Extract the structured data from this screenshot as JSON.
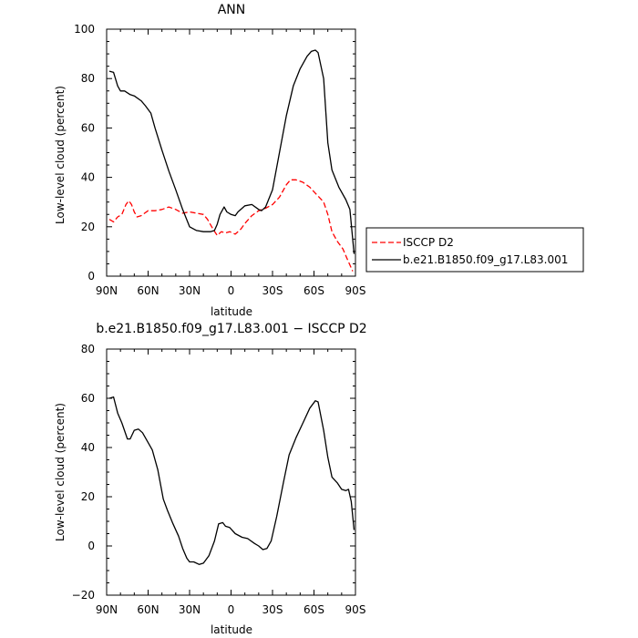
{
  "chart_data": [
    {
      "type": "line",
      "title": "ANN",
      "xlabel": "latitude",
      "ylabel": "Low-level cloud (percent)",
      "xlim": [
        90,
        -90
      ],
      "ylim": [
        0,
        100
      ],
      "xticks": [
        90,
        60,
        30,
        0,
        -30,
        -60,
        -90
      ],
      "xtick_labels": [
        "90N",
        "60N",
        "30N",
        "0",
        "30S",
        "60S",
        "90S"
      ],
      "yticks": [
        0,
        20,
        40,
        60,
        80,
        100
      ],
      "ytick_labels": [
        "0",
        "20",
        "40",
        "60",
        "80",
        "100"
      ],
      "grid": false,
      "legend": "outside-right",
      "series": [
        {
          "name": "ISCCP D2",
          "color": "#ff0000",
          "dash": "dashed",
          "points": [
            [
              88,
              23
            ],
            [
              85,
              22
            ],
            [
              82,
              24
            ],
            [
              79,
              25
            ],
            [
              76,
              29
            ],
            [
              74,
              30.5
            ],
            [
              72,
              29
            ],
            [
              70,
              26
            ],
            [
              68,
              24
            ],
            [
              65,
              24.5
            ],
            [
              60,
              26.5
            ],
            [
              55,
              26.5
            ],
            [
              50,
              27
            ],
            [
              45,
              28
            ],
            [
              40,
              27
            ],
            [
              35,
              25.5
            ],
            [
              30,
              26
            ],
            [
              25,
              25.5
            ],
            [
              20,
              25
            ],
            [
              17,
              23
            ],
            [
              13,
              19
            ],
            [
              10,
              16.5
            ],
            [
              7,
              18
            ],
            [
              4,
              17.5
            ],
            [
              1,
              18
            ],
            [
              -3,
              17
            ],
            [
              -7,
              19
            ],
            [
              -11,
              22
            ],
            [
              -15,
              24.5
            ],
            [
              -20,
              26.5
            ],
            [
              -25,
              27.5
            ],
            [
              -30,
              29
            ],
            [
              -35,
              32
            ],
            [
              -40,
              37
            ],
            [
              -43,
              39
            ],
            [
              -47,
              39
            ],
            [
              -52,
              38
            ],
            [
              -57,
              36
            ],
            [
              -62,
              33
            ],
            [
              -67,
              30
            ],
            [
              -70,
              25
            ],
            [
              -73,
              18
            ],
            [
              -77,
              14
            ],
            [
              -81,
              11
            ],
            [
              -84,
              7
            ],
            [
              -88,
              2
            ]
          ]
        },
        {
          "name": "b.e21.B1850.f09_g17.L83.001",
          "color": "#000000",
          "dash": "solid",
          "points": [
            [
              88,
              83
            ],
            [
              85,
              82.5
            ],
            [
              82,
              77
            ],
            [
              80,
              75
            ],
            [
              77,
              75
            ],
            [
              73,
              73.5
            ],
            [
              70,
              73
            ],
            [
              65,
              71
            ],
            [
              62,
              69
            ],
            [
              58,
              66
            ],
            [
              55,
              60
            ],
            [
              50,
              51
            ],
            [
              45,
              42.5
            ],
            [
              40,
              35
            ],
            [
              35,
              27
            ],
            [
              30,
              20
            ],
            [
              25,
              18.5
            ],
            [
              20,
              18
            ],
            [
              15,
              18
            ],
            [
              12,
              18.5
            ],
            [
              10,
              21
            ],
            [
              8,
              25
            ],
            [
              5,
              28
            ],
            [
              3,
              26
            ],
            [
              0,
              25
            ],
            [
              -3,
              24.5
            ],
            [
              -5,
              26
            ],
            [
              -10,
              28.5
            ],
            [
              -15,
              29
            ],
            [
              -20,
              27
            ],
            [
              -22,
              26.5
            ],
            [
              -25,
              28
            ],
            [
              -30,
              35
            ],
            [
              -35,
              50
            ],
            [
              -40,
              65
            ],
            [
              -45,
              77
            ],
            [
              -50,
              84
            ],
            [
              -55,
              89
            ],
            [
              -58,
              91
            ],
            [
              -61,
              91.5
            ],
            [
              -63,
              90.5
            ],
            [
              -67,
              80
            ],
            [
              -70,
              54
            ],
            [
              -73,
              43
            ],
            [
              -78,
              36
            ],
            [
              -83,
              31
            ],
            [
              -86,
              27
            ],
            [
              -89,
              9
            ]
          ]
        }
      ]
    },
    {
      "type": "line",
      "title": "b.e21.B1850.f09_g17.L83.001 − ISCCP D2",
      "xlabel": "latitude",
      "ylabel": "Low-level cloud (percent)",
      "xlim": [
        90,
        -90
      ],
      "ylim": [
        -20,
        80
      ],
      "xticks": [
        90,
        60,
        30,
        0,
        -30,
        -60,
        -90
      ],
      "xtick_labels": [
        "90N",
        "60N",
        "30N",
        "0",
        "30S",
        "60S",
        "90S"
      ],
      "yticks": [
        -20,
        0,
        20,
        40,
        60,
        80
      ],
      "ytick_labels": [
        "−20",
        "0",
        "20",
        "40",
        "60",
        "80"
      ],
      "grid": false,
      "series": [
        {
          "color": "#000000",
          "dash": "solid",
          "points": [
            [
              88,
              60
            ],
            [
              85,
              60.5
            ],
            [
              82,
              54
            ],
            [
              79,
              50
            ],
            [
              75,
              43.5
            ],
            [
              73,
              43.5
            ],
            [
              70,
              47
            ],
            [
              67,
              47.5
            ],
            [
              64,
              46
            ],
            [
              60,
              42
            ],
            [
              57,
              39
            ],
            [
              53,
              31
            ],
            [
              49,
              19
            ],
            [
              46,
              14.5
            ],
            [
              42,
              9
            ],
            [
              38,
              4
            ],
            [
              35,
              -1
            ],
            [
              32,
              -5
            ],
            [
              30,
              -6.5
            ],
            [
              27,
              -6.5
            ],
            [
              23,
              -7.5
            ],
            [
              20,
              -7
            ],
            [
              16,
              -4
            ],
            [
              12,
              2
            ],
            [
              9,
              9
            ],
            [
              6,
              9.5
            ],
            [
              4,
              8
            ],
            [
              1,
              7.5
            ],
            [
              -3,
              5
            ],
            [
              -8,
              3.5
            ],
            [
              -12,
              3
            ],
            [
              -17,
              1
            ],
            [
              -20,
              0
            ],
            [
              -23,
              -1.5
            ],
            [
              -26,
              -1
            ],
            [
              -29,
              2
            ],
            [
              -33,
              12
            ],
            [
              -38,
              26
            ],
            [
              -42,
              37
            ],
            [
              -47,
              44
            ],
            [
              -52,
              50
            ],
            [
              -57,
              56
            ],
            [
              -61,
              59
            ],
            [
              -63,
              58.5
            ],
            [
              -67,
              47
            ],
            [
              -70,
              36
            ],
            [
              -73,
              28
            ],
            [
              -77,
              25.5
            ],
            [
              -80,
              23
            ],
            [
              -83,
              22.5
            ],
            [
              -85,
              23
            ],
            [
              -87,
              18
            ],
            [
              -89,
              6.5
            ]
          ]
        }
      ]
    }
  ]
}
